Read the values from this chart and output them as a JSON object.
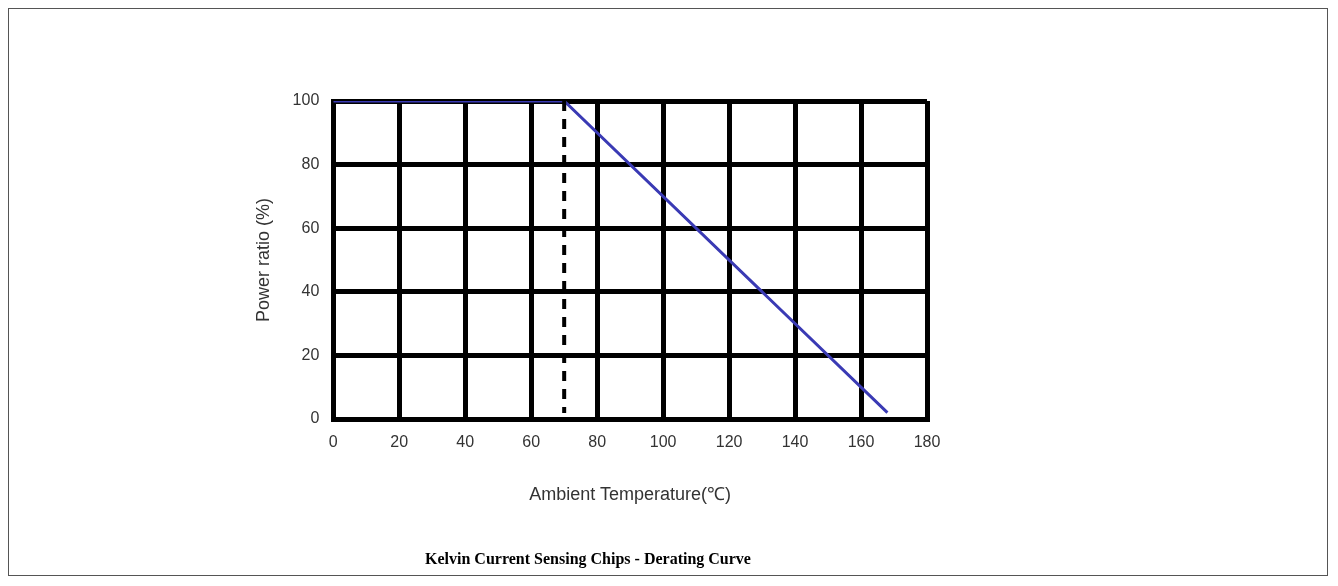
{
  "chart_data": {
    "type": "line",
    "title": "Kelvin Current Sensing Chips - Derating Curve",
    "xlabel": "Ambient Temperature(℃)",
    "ylabel": "Power ratio (%)",
    "x": [
      0,
      70,
      168
    ],
    "series": [
      {
        "color": "#3a3ab4",
        "values": [
          100,
          100,
          2
        ]
      }
    ],
    "xlim": [
      0,
      180
    ],
    "xticks": [
      0,
      20,
      40,
      60,
      80,
      100,
      120,
      140,
      160,
      180
    ],
    "ylim": [
      0,
      100
    ],
    "yticks": [
      0,
      20,
      40,
      60,
      80,
      100
    ],
    "grid": true,
    "legend": false,
    "marker": "none",
    "line_style": "solid",
    "ref_lines": [
      {
        "axis": "x",
        "value": 70,
        "color": "#000000",
        "line_style": "dashed"
      }
    ]
  }
}
